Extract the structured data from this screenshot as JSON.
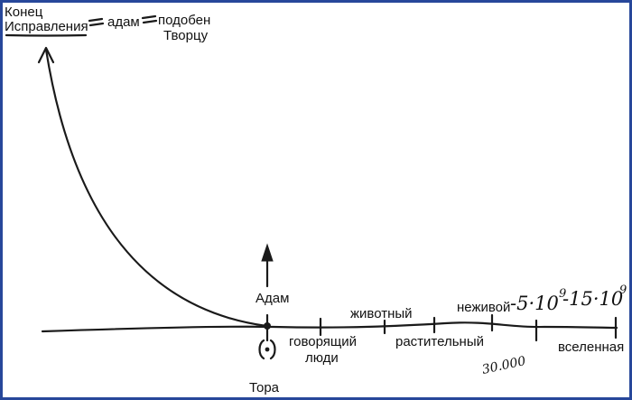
{
  "top_labels": {
    "end_line1": "Конец",
    "end_line2": "Исправления",
    "adam": "адам",
    "like_line1": "подобен",
    "like_line2": "Творцу"
  },
  "axis_labels": {
    "adam": "Адам",
    "torah": "Тора",
    "speaking": "говорящий",
    "people": "люди",
    "animal": "животный",
    "vegetative": "растительный",
    "inanimate": "неживой",
    "universe": "вселенная"
  },
  "handwritten": {
    "five_base": "-5·10",
    "five_exp": "9",
    "fifteen_base": "-15·10",
    "fifteen_exp": "9",
    "thirty_thousand": "30.000"
  },
  "colors": {
    "frame": "#27479a",
    "ink": "#1a1a1a",
    "background": "#ffffff"
  }
}
